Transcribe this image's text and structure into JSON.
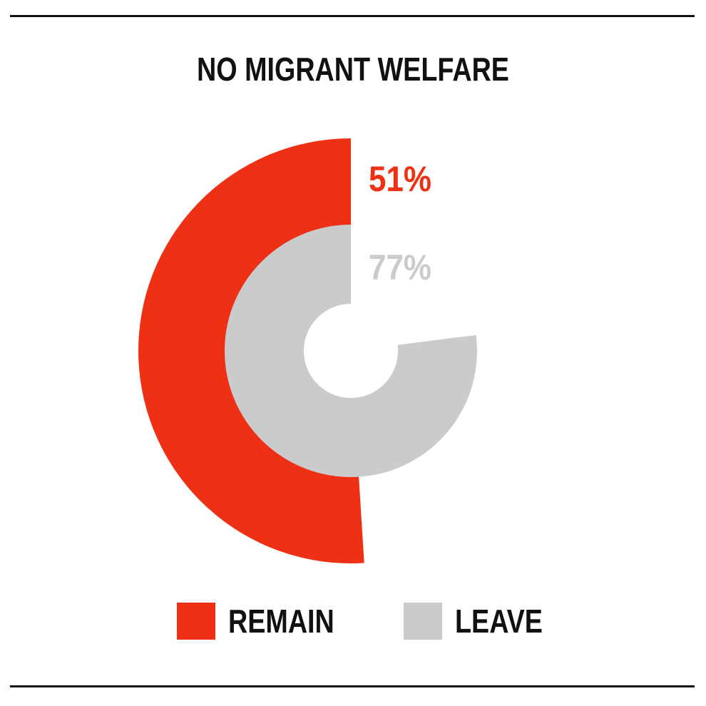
{
  "title": "NO MIGRANT WELFARE",
  "colors": {
    "remain": "#ee3014",
    "leave": "#cacbcd",
    "text": "#111111"
  },
  "legend": [
    {
      "label": "REMAIN",
      "color": "#ee3014"
    },
    {
      "label": "LEAVE",
      "color": "#cacbcd"
    }
  ],
  "chart_data": {
    "type": "pie",
    "variant": "concentric-radial-bars",
    "title": "NO MIGRANT WELFARE",
    "series": [
      {
        "name": "REMAIN",
        "value": 51,
        "label": "51%",
        "ring": "outer",
        "color": "#ee3014"
      },
      {
        "name": "LEAVE",
        "value": 77,
        "label": "77%",
        "ring": "inner",
        "color": "#cacbcd"
      }
    ],
    "direction": "counter-clockwise from top",
    "legend_position": "bottom"
  }
}
